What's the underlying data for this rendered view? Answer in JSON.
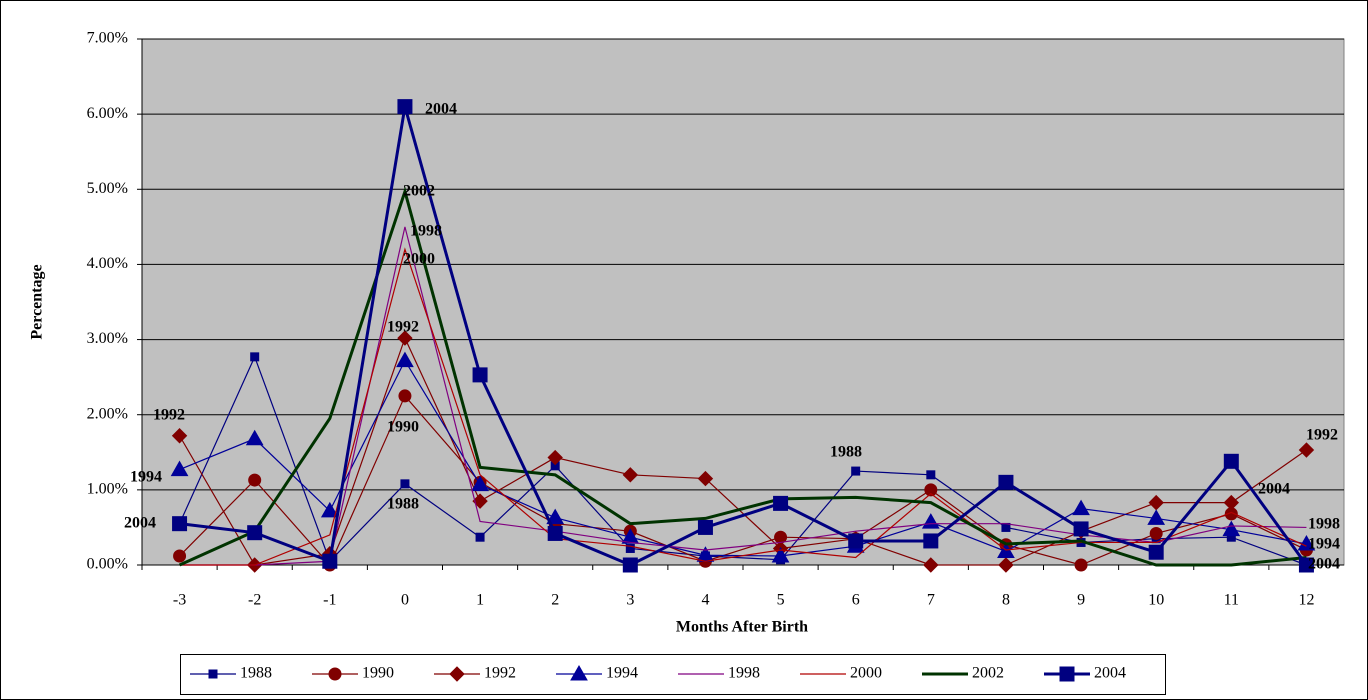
{
  "chart_data": {
    "type": "line",
    "x_label": "Months After Birth",
    "y_label": "Percentage",
    "categories": [
      "-3",
      "-2",
      "-1",
      "0",
      "1",
      "2",
      "3",
      "4",
      "5",
      "6",
      "7",
      "8",
      "9",
      "10",
      "11",
      "12"
    ],
    "ylim": [
      0,
      7
    ],
    "yticks": [
      {
        "value": 0,
        "label": "0.00%"
      },
      {
        "value": 1,
        "label": "1.00%"
      },
      {
        "value": 2,
        "label": "2.00%"
      },
      {
        "value": 3,
        "label": "3.00%"
      },
      {
        "value": 4,
        "label": "4.00%"
      },
      {
        "value": 5,
        "label": "5.00%"
      },
      {
        "value": 6,
        "label": "6.00%"
      },
      {
        "value": 7,
        "label": "7.00%"
      }
    ],
    "grid": true,
    "legend": "bottom",
    "series": [
      {
        "name": "1988",
        "color": "#000080",
        "marker": "square-small",
        "line_width": 1.2,
        "values": [
          0.55,
          2.77,
          0.05,
          1.08,
          0.37,
          1.32,
          0.22,
          0.12,
          0.07,
          1.25,
          1.2,
          0.5,
          0.3,
          0.35,
          0.37,
          0.0
        ]
      },
      {
        "name": "1990",
        "color": "#800000",
        "marker": "circle",
        "line_width": 1.2,
        "values": [
          0.12,
          1.13,
          0.0,
          2.25,
          1.1,
          0.55,
          0.45,
          0.05,
          0.37,
          0.35,
          1.0,
          0.27,
          0.0,
          0.42,
          0.68,
          0.2
        ]
      },
      {
        "name": "1992",
        "color": "#800000",
        "marker": "diamond",
        "line_width": 1.2,
        "values": [
          1.72,
          0.0,
          0.15,
          3.02,
          0.85,
          1.43,
          1.2,
          1.15,
          0.22,
          0.35,
          0.0,
          0.0,
          0.45,
          0.83,
          0.83,
          1.53
        ]
      },
      {
        "name": "1994",
        "color": "#000099",
        "marker": "triangle",
        "line_width": 1.2,
        "values": [
          1.27,
          1.68,
          0.72,
          2.72,
          1.07,
          0.63,
          0.37,
          0.13,
          0.12,
          0.25,
          0.57,
          0.18,
          0.75,
          0.62,
          0.47,
          0.28
        ]
      },
      {
        "name": "1998",
        "color": "#800080",
        "marker": "none",
        "line_width": 1.2,
        "values": [
          0.0,
          0.0,
          0.05,
          4.5,
          0.58,
          0.45,
          0.3,
          0.2,
          0.3,
          0.45,
          0.55,
          0.55,
          0.4,
          0.3,
          0.52,
          0.5
        ]
      },
      {
        "name": "2000",
        "color": "#b00000",
        "marker": "none",
        "line_width": 1.2,
        "values": [
          0.0,
          0.0,
          0.4,
          4.2,
          1.2,
          0.35,
          0.25,
          0.05,
          0.2,
          0.1,
          0.95,
          0.2,
          0.3,
          0.3,
          0.7,
          0.25
        ]
      },
      {
        "name": "2002",
        "color": "#003300",
        "marker": "none",
        "line_width": 3,
        "values": [
          0.0,
          0.45,
          1.95,
          4.97,
          1.3,
          1.2,
          0.55,
          0.62,
          0.88,
          0.9,
          0.83,
          0.28,
          0.32,
          0.0,
          0.0,
          0.1
        ]
      },
      {
        "name": "2004",
        "color": "#000080",
        "marker": "square-large",
        "line_width": 3,
        "values": [
          0.55,
          0.43,
          0.05,
          6.1,
          2.53,
          0.42,
          0.0,
          0.5,
          0.82,
          0.32,
          0.32,
          1.1,
          0.48,
          0.17,
          1.38,
          0.0
        ]
      }
    ],
    "annotations": [
      "2004",
      "2002",
      "1998",
      "2000",
      "1992",
      "1990",
      "1988",
      "1992",
      "1994",
      "2004",
      "1988",
      "2004",
      "1992",
      "1998",
      "1994",
      "2004"
    ]
  }
}
